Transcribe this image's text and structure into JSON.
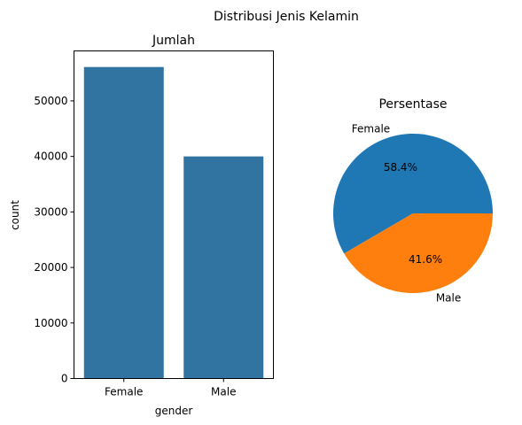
{
  "figure": {
    "suptitle": "Distribusi Jenis Kelamin"
  },
  "chart_data": [
    {
      "type": "bar",
      "title": "Jumlah",
      "xlabel": "gender",
      "ylabel": "count",
      "categories": [
        "Female",
        "Male"
      ],
      "values": [
        56100,
        40000
      ],
      "ylim": [
        0,
        59000
      ],
      "yticks": [
        0,
        10000,
        20000,
        30000,
        40000,
        50000
      ],
      "color": "#3274a1",
      "grid": false
    },
    {
      "type": "pie",
      "title": "Persentase",
      "labels": [
        "Female",
        "Male"
      ],
      "values": [
        58.4,
        41.6
      ],
      "pct_labels": [
        "58.4%",
        "41.6%"
      ],
      "colors": [
        "#1f77b4",
        "#ff7f0e"
      ]
    }
  ]
}
